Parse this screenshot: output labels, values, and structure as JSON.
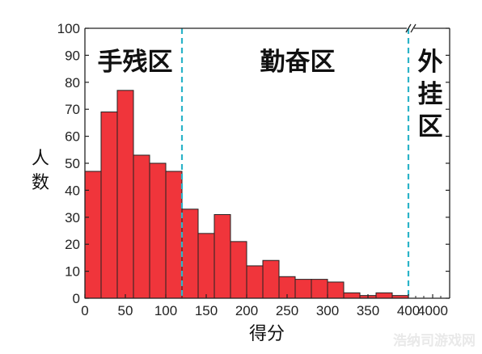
{
  "chart_data": {
    "type": "bar",
    "xlabel": "得分",
    "ylabel": "人数",
    "ylim": [
      0,
      100
    ],
    "xlim": [
      0,
      400
    ],
    "bin_width": 20,
    "x_ticks": [
      0,
      50,
      100,
      150,
      200,
      250,
      300,
      350,
      400
    ],
    "x_tick_labels": [
      "0",
      "50",
      "100",
      "150",
      "200",
      "250",
      "300",
      "350",
      "400"
    ],
    "x_break_ticks": [
      "4000"
    ],
    "y_ticks": [
      0,
      10,
      20,
      30,
      40,
      50,
      60,
      70,
      80,
      90,
      100
    ],
    "y_tick_labels": [
      "0",
      "10",
      "20",
      "30",
      "40",
      "50",
      "60",
      "70",
      "80",
      "90",
      "100"
    ],
    "bins": [
      {
        "x": 0,
        "value": 47
      },
      {
        "x": 20,
        "value": 69
      },
      {
        "x": 40,
        "value": 77
      },
      {
        "x": 60,
        "value": 53
      },
      {
        "x": 80,
        "value": 50
      },
      {
        "x": 100,
        "value": 47
      },
      {
        "x": 120,
        "value": 33
      },
      {
        "x": 140,
        "value": 24
      },
      {
        "x": 160,
        "value": 31
      },
      {
        "x": 180,
        "value": 21
      },
      {
        "x": 200,
        "value": 12
      },
      {
        "x": 220,
        "value": 14
      },
      {
        "x": 240,
        "value": 8
      },
      {
        "x": 260,
        "value": 7
      },
      {
        "x": 280,
        "value": 7
      },
      {
        "x": 300,
        "value": 6
      },
      {
        "x": 320,
        "value": 2
      },
      {
        "x": 340,
        "value": 1
      },
      {
        "x": 360,
        "value": 2
      },
      {
        "x": 380,
        "value": 1
      }
    ],
    "dividers": [
      120,
      400
    ],
    "regions": [
      {
        "label": "手残区"
      },
      {
        "label": "勤奋区"
      },
      {
        "label": "外挂区",
        "vertical": true
      }
    ],
    "bar_color": "#f0353b",
    "bar_edge_color": "#222222",
    "divider_color": "#2bb3c8",
    "grid": false
  },
  "watermark": "浩纳司游戏网"
}
